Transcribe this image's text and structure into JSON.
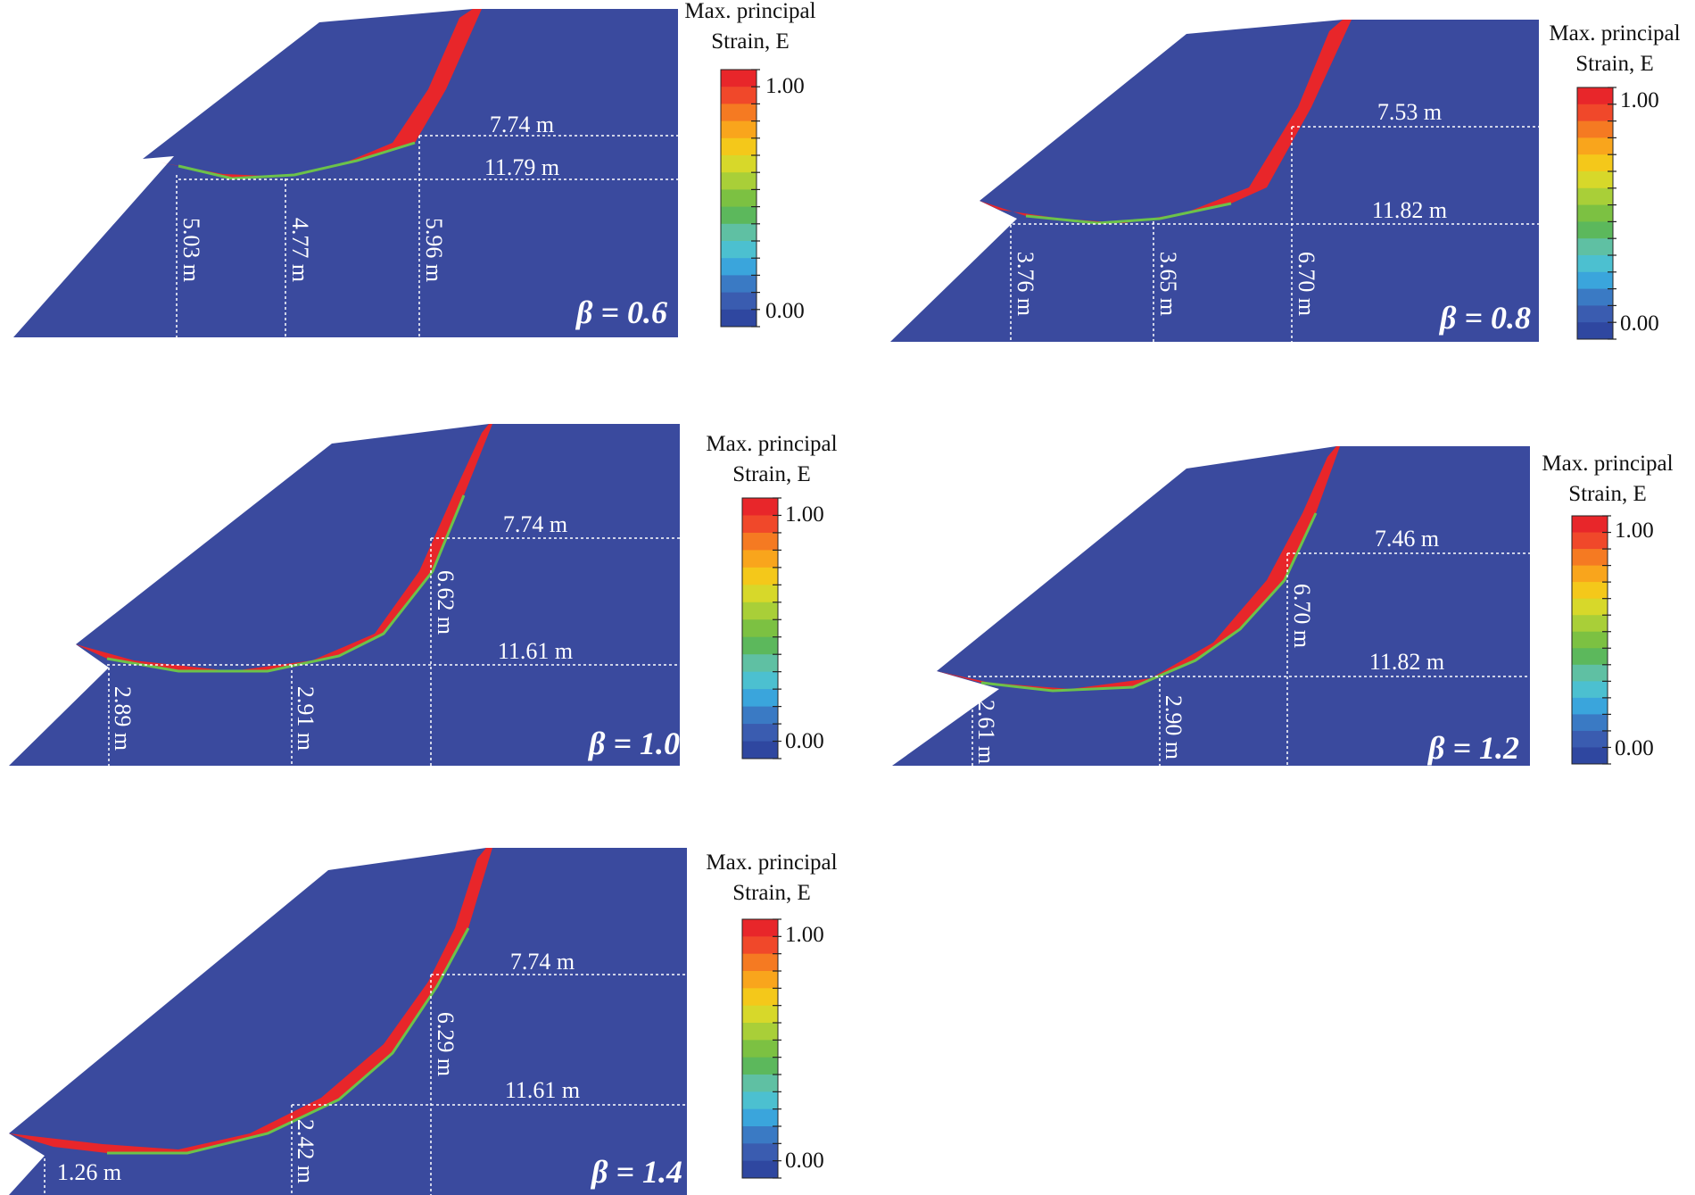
{
  "panels": [
    {
      "beta_text": "β = 0.6",
      "legend": {
        "title_line1": "Max. principal",
        "title_line2": "Strain, E",
        "max_label": "1.00",
        "min_label": "0.00"
      },
      "dims": {
        "horizontal": [
          "7.74 m",
          "11.79 m"
        ],
        "vertical": [
          "5.03 m",
          "4.77 m",
          "5.96 m"
        ]
      }
    },
    {
      "beta_text": "β = 0.8",
      "legend": {
        "title_line1": "Max. principal",
        "title_line2": "Strain, E",
        "max_label": "1.00",
        "min_label": "0.00"
      },
      "dims": {
        "horizontal": [
          "7.53 m",
          "11.82 m"
        ],
        "vertical": [
          "3.76 m",
          "3.65 m",
          "6.70 m"
        ]
      }
    },
    {
      "beta_text": "β = 1.0",
      "legend": {
        "title_line1": "Max. principal",
        "title_line2": "Strain, E",
        "max_label": "1.00",
        "min_label": "0.00"
      },
      "dims": {
        "horizontal": [
          "7.74 m",
          "11.61 m"
        ],
        "vertical": [
          "2.89 m",
          "2.91 m",
          "6.62 m"
        ]
      }
    },
    {
      "beta_text": "β = 1.2",
      "legend": {
        "title_line1": "Max. principal",
        "title_line2": "Strain, E",
        "max_label": "1.00",
        "min_label": "0.00"
      },
      "dims": {
        "horizontal": [
          "7.46 m",
          "11.82 m"
        ],
        "vertical": [
          "2.61 m",
          "2.90 m",
          "6.70 m"
        ]
      }
    },
    {
      "beta_text": "β = 1.4",
      "legend": {
        "title_line1": "Max. principal",
        "title_line2": "Strain, E",
        "max_label": "1.00",
        "min_label": "0.00"
      },
      "dims": {
        "horizontal": [
          "7.74 m",
          "11.61 m"
        ],
        "vertical": [
          "1.26 m",
          "2.42 m",
          "6.29 m"
        ]
      }
    }
  ],
  "colors": {
    "soil": "#3a4a9e",
    "shear_band": "#e8262a",
    "band_edge": "#6cc24a",
    "scale": [
      "#e8262a",
      "#f0482a",
      "#f57a22",
      "#f9a51c",
      "#f4c81a",
      "#d7d82a",
      "#a9cf38",
      "#7cc142",
      "#5cb85c",
      "#5fc0a3",
      "#4cc0d0",
      "#3aa5dc",
      "#3a7ac4",
      "#3a5cb0",
      "#2f47a0"
    ]
  }
}
